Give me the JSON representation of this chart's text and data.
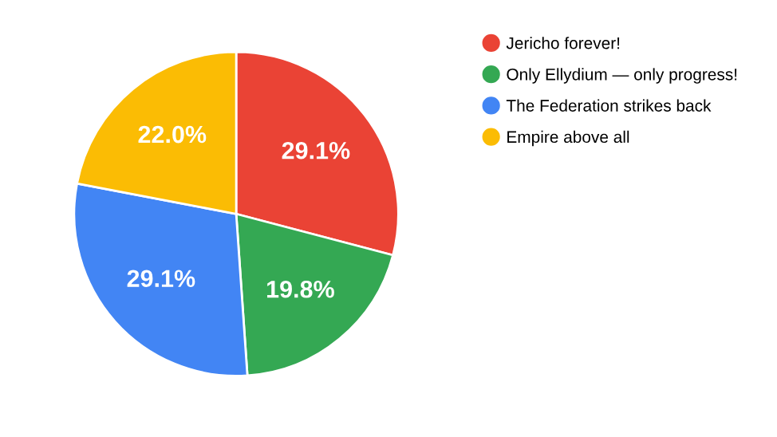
{
  "chart_data": {
    "type": "pie",
    "categories": [
      "Jericho forever!",
      "Only Ellydium — only progress!",
      "The Federation strikes back",
      "Empire above all"
    ],
    "values": [
      29.1,
      19.8,
      29.1,
      22.0
    ],
    "colors": [
      "#ea4335",
      "#34a853",
      "#4285f4",
      "#fbbc04"
    ],
    "value_labels": [
      "29.1%",
      "19.8%",
      "29.1%",
      "22.0%"
    ],
    "legend": "right"
  }
}
